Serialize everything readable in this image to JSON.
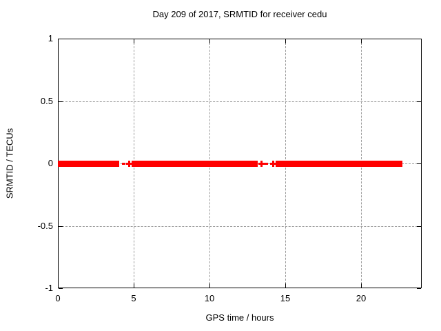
{
  "chart_data": {
    "type": "scatter",
    "title": "Day 209 of 2017, SRMTID for receiver cedu",
    "xlabel": "GPS time / hours",
    "ylabel": "SRMTID / TECUs",
    "xlim": [
      0,
      24
    ],
    "ylim": [
      -1,
      1
    ],
    "xticks": [
      0,
      5,
      10,
      15,
      20
    ],
    "xtick_labels": [
      "0",
      "5",
      "10",
      "15",
      "20"
    ],
    "yticks": [
      1,
      0.5,
      0,
      -0.5,
      -1
    ],
    "ytick_labels": [
      "1",
      "0.5",
      "0",
      "-0.5",
      "-1"
    ],
    "grid": true,
    "legend": "none",
    "series": [
      {
        "name": "SRMTID",
        "color": "#ff0000",
        "marker": "plus",
        "y_value": 0,
        "segments": [
          [
            0.0,
            4.05
          ],
          [
            4.87,
            13.2
          ],
          [
            14.35,
            22.7
          ]
        ],
        "gap_points": [
          {
            "x": 4.33,
            "shape": "dash"
          },
          {
            "x": 4.72,
            "shape": "plus"
          },
          {
            "x": 13.45,
            "shape": "plus"
          },
          {
            "x": 13.77,
            "shape": "dash"
          },
          {
            "x": 14.2,
            "shape": "plus"
          }
        ]
      }
    ],
    "colors": {
      "series": "#ff0000",
      "grid": "#9a9a9a",
      "border": "#000000",
      "background": "#ffffff",
      "text": "#000000"
    }
  }
}
